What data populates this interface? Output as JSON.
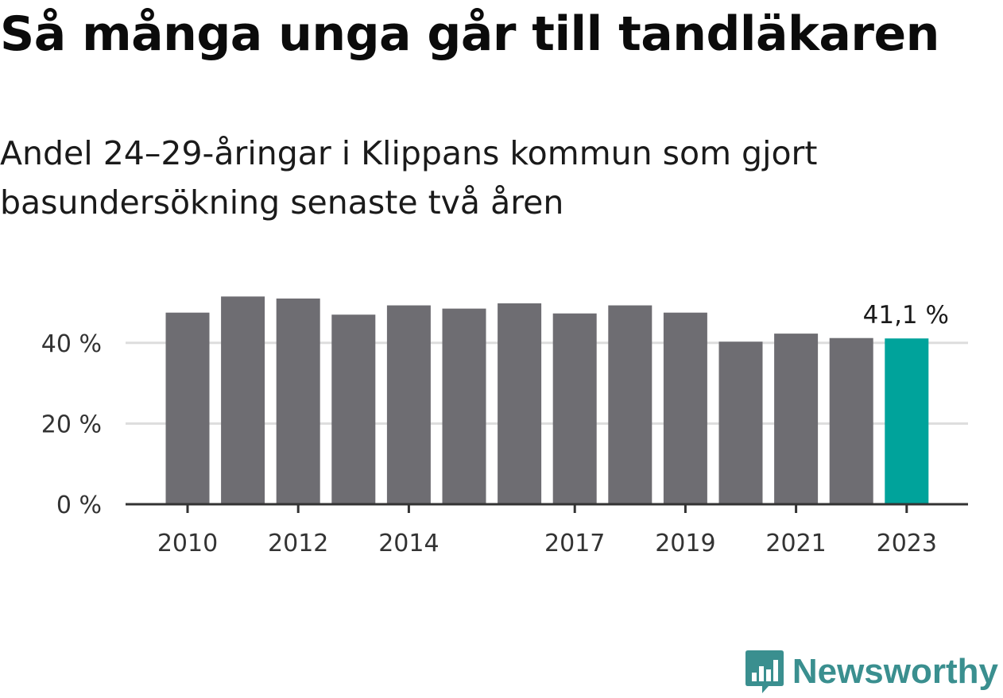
{
  "header": {
    "title": "Så många unga går till tandläkaren",
    "subtitle": "Andel 24–29-åringar i Klippans kommun som gjort basundersökning senaste två åren"
  },
  "branding": {
    "logo_text": "Newsworthy",
    "logo_icon": "bar-chart-speech-bubble-icon",
    "logo_color": "#3a8f8f"
  },
  "chart_data": {
    "type": "bar",
    "categories": [
      "2010",
      "2011",
      "2012",
      "2013",
      "2014",
      "2015",
      "2016",
      "2017",
      "2018",
      "2019",
      "2020",
      "2021",
      "2022",
      "2023"
    ],
    "values": [
      47.5,
      51.5,
      51.0,
      47.0,
      49.3,
      48.5,
      49.8,
      47.3,
      49.3,
      47.5,
      40.3,
      42.3,
      41.2,
      41.1
    ],
    "x_tick_labels": [
      "2010",
      "2012",
      "2014",
      "2017",
      "2019",
      "2021",
      "2023"
    ],
    "y_ticks": [
      0,
      20,
      40
    ],
    "y_tick_labels": [
      "0 %",
      "20 %",
      "40 %"
    ],
    "ylim": [
      0,
      55
    ],
    "grid": true,
    "highlight": {
      "category": "2023",
      "label": "41,1 %"
    },
    "colors": {
      "bar": "#6e6d72",
      "highlight": "#00a39b",
      "grid": "#dddddd",
      "axis": "#333333"
    }
  }
}
